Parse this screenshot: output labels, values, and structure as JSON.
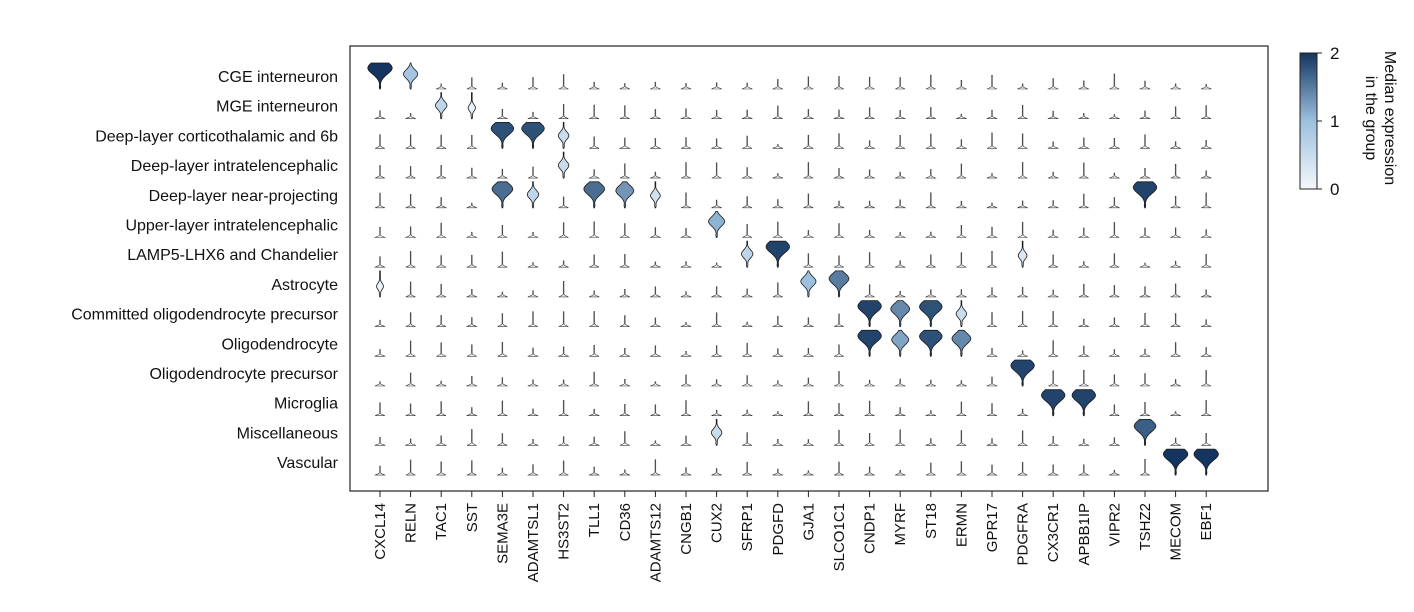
{
  "chart_data": {
    "type": "violin",
    "rows": [
      "CGE interneuron",
      "MGE interneuron",
      "Deep-layer corticothalamic and 6b",
      "Deep-layer intratelencephalic",
      "Deep-layer near-projecting",
      "Upper-layer intratelencephalic",
      "LAMP5-LHX6 and Chandelier",
      "Astrocyte",
      "Committed oligodendrocyte precursor",
      "Oligodendrocyte",
      "Oligodendrocyte precursor",
      "Microglia",
      "Miscellaneous",
      "Vascular"
    ],
    "columns": [
      "CXCL14",
      "RELN",
      "TAC1",
      "SST",
      "SEMA3E",
      "ADAMTSL1",
      "HS3ST2",
      "TLL1",
      "CD36",
      "ADAMTS12",
      "CNGB1",
      "CUX2",
      "SFRP1",
      "PDGFD",
      "GJA1",
      "SLCO1C1",
      "CNDP1",
      "MYRF",
      "ST18",
      "ERMN",
      "GPR17",
      "PDGFRA",
      "CX3CR1",
      "APBB1IP",
      "VIPR2",
      "TSHZ2",
      "MECOM",
      "EBF1"
    ],
    "highlights": [
      {
        "row": 0,
        "col": 0,
        "median": 2.0
      },
      {
        "row": 0,
        "col": 1,
        "median": 0.9
      },
      {
        "row": 1,
        "col": 2,
        "median": 0.6
      },
      {
        "row": 1,
        "col": 3,
        "median": 0.15
      },
      {
        "row": 2,
        "col": 4,
        "median": 1.8
      },
      {
        "row": 2,
        "col": 5,
        "median": 1.8
      },
      {
        "row": 2,
        "col": 6,
        "median": 0.5
      },
      {
        "row": 3,
        "col": 6,
        "median": 0.5
      },
      {
        "row": 4,
        "col": 4,
        "median": 1.6
      },
      {
        "row": 4,
        "col": 5,
        "median": 0.6
      },
      {
        "row": 4,
        "col": 7,
        "median": 1.6
      },
      {
        "row": 4,
        "col": 8,
        "median": 1.3
      },
      {
        "row": 4,
        "col": 9,
        "median": 0.4
      },
      {
        "row": 4,
        "col": 25,
        "median": 1.9
      },
      {
        "row": 5,
        "col": 11,
        "median": 1.1
      },
      {
        "row": 6,
        "col": 12,
        "median": 0.6
      },
      {
        "row": 6,
        "col": 13,
        "median": 1.9
      },
      {
        "row": 6,
        "col": 21,
        "median": 0.3
      },
      {
        "row": 7,
        "col": 0,
        "median": 0.1
      },
      {
        "row": 7,
        "col": 14,
        "median": 1.0
      },
      {
        "row": 7,
        "col": 15,
        "median": 1.5
      },
      {
        "row": 8,
        "col": 16,
        "median": 1.9
      },
      {
        "row": 8,
        "col": 17,
        "median": 1.4
      },
      {
        "row": 8,
        "col": 18,
        "median": 1.8
      },
      {
        "row": 8,
        "col": 19,
        "median": 0.5
      },
      {
        "row": 9,
        "col": 16,
        "median": 1.9
      },
      {
        "row": 9,
        "col": 17,
        "median": 1.2
      },
      {
        "row": 9,
        "col": 18,
        "median": 1.8
      },
      {
        "row": 9,
        "col": 19,
        "median": 1.4
      },
      {
        "row": 10,
        "col": 21,
        "median": 1.9
      },
      {
        "row": 11,
        "col": 22,
        "median": 1.9
      },
      {
        "row": 11,
        "col": 23,
        "median": 1.9
      },
      {
        "row": 12,
        "col": 11,
        "median": 0.5
      },
      {
        "row": 12,
        "col": 25,
        "median": 1.7
      },
      {
        "row": 13,
        "col": 26,
        "median": 2.0
      },
      {
        "row": 13,
        "col": 27,
        "median": 2.0
      }
    ],
    "colorbar": {
      "label": "Median expression in the group",
      "min": 0,
      "max": 2,
      "ticks": [
        "0",
        "1",
        "2"
      ],
      "colors": [
        "#f4f7fb",
        "#9cc0de",
        "#13355f"
      ]
    }
  }
}
